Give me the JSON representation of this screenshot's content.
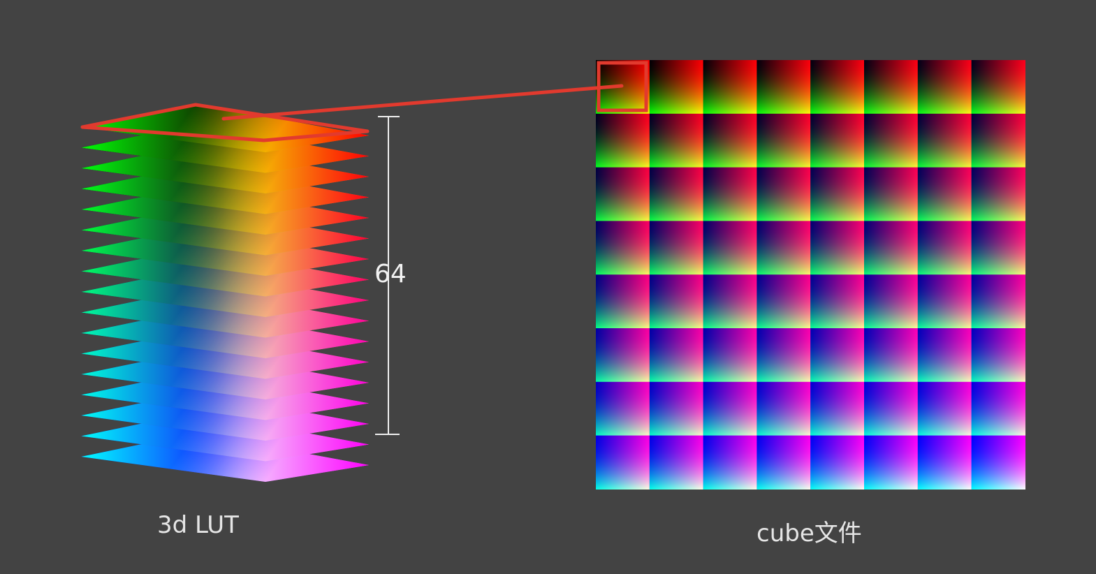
{
  "lut_stack": {
    "caption": "3d LUT",
    "dimension_label": "64",
    "highlight_color": "#e23a2e"
  },
  "cube_file": {
    "caption": "cube文件",
    "grid": {
      "rows": 8,
      "cols": 8
    }
  },
  "colors": {
    "background": "#434343",
    "highlight": "#e23a2e",
    "dimension_bar": "#f0f0f0"
  }
}
